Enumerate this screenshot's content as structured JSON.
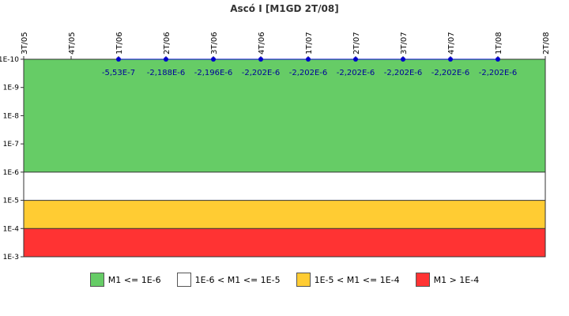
{
  "chart_data": {
    "type": "line",
    "title": "Ascó I [M1GD 2T/08]",
    "xlabel": "",
    "ylabel": "",
    "x_categories": [
      "3T/05",
      "4T/05",
      "1T/06",
      "2T/06",
      "3T/06",
      "4T/06",
      "1T/07",
      "2T/07",
      "3T/07",
      "4T/07",
      "1T/08",
      "2T/08"
    ],
    "y_axis": {
      "scale": "log",
      "direction": "inverted",
      "tick_labels": [
        "1E-10",
        "1E-9",
        "1E-8",
        "1E-7",
        "1E-6",
        "1E-5",
        "1E-4",
        "1E-3"
      ],
      "range": [
        "1E-10",
        "1E-3"
      ]
    },
    "bands": [
      {
        "label": "M1 <= 1E-6",
        "from": "1E-10",
        "to": "1E-6",
        "color": "#66cc66"
      },
      {
        "label": "1E-6 < M1 <= 1E-5",
        "from": "1E-6",
        "to": "1E-5",
        "color": "#ffffff"
      },
      {
        "label": "1E-5 < M1 <= 1E-4",
        "from": "1E-5",
        "to": "1E-4",
        "color": "#ffcc33"
      },
      {
        "label": "M1 > 1E-4",
        "from": "1E-4",
        "to": "1E-3",
        "color": "#ff3333"
      }
    ],
    "points": [
      {
        "x": "1T/06",
        "label": "-5,53E-7"
      },
      {
        "x": "2T/06",
        "label": "-2,188E-6"
      },
      {
        "x": "3T/06",
        "label": "-2,196E-6"
      },
      {
        "x": "4T/06",
        "label": "-2,202E-6"
      },
      {
        "x": "1T/07",
        "label": "-2,202E-6"
      },
      {
        "x": "2T/07",
        "label": "-2,202E-6"
      },
      {
        "x": "3T/07",
        "label": "-2,202E-6"
      },
      {
        "x": "4T/07",
        "label": "-2,202E-6"
      },
      {
        "x": "1T/08",
        "label": "-2,202E-6"
      }
    ],
    "point_color": "#0000cc",
    "label_color": "#000099",
    "grid": false,
    "legend_position": "bottom"
  }
}
